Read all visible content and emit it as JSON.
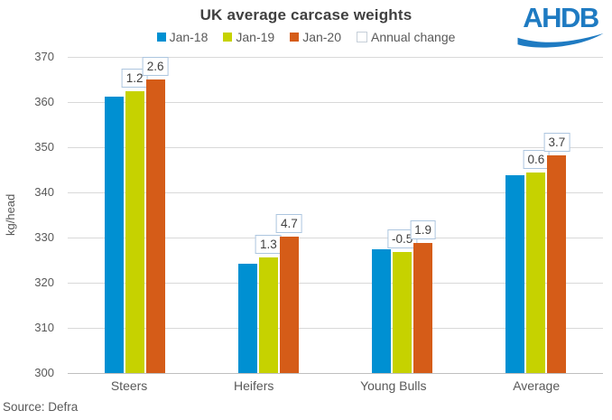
{
  "header": {
    "logo_text": "AHDB"
  },
  "footer": {
    "source": "Source: Defra"
  },
  "colors": {
    "jan18": "#0090D2",
    "jan19": "#C6D200",
    "jan20": "#D55C18",
    "annual_change_box_border": "#ADC6DF",
    "annual_change_swatch_border": "#C6CFD8",
    "logo_blue": "#1F7BC2"
  },
  "legend": [
    {
      "label": "Jan-18",
      "color": "#0090D2",
      "style": "filled"
    },
    {
      "label": "Jan-19",
      "color": "#C6D200",
      "style": "filled"
    },
    {
      "label": "Jan-20",
      "color": "#D55C18",
      "style": "filled"
    },
    {
      "label": "Annual change",
      "color": "#FFFFFF",
      "style": "outlined"
    }
  ],
  "chart_data": {
    "type": "bar",
    "title": "UK average carcase weights",
    "ylabel": "kg/head",
    "xlabel": "",
    "ylim": [
      300,
      370
    ],
    "ytick_step": 10,
    "yticks": [
      "370",
      "360",
      "350",
      "340",
      "330",
      "320",
      "310",
      "300"
    ],
    "grid": true,
    "legend_position": "top",
    "categories": [
      "Steers",
      "Heifers",
      "Young Bulls",
      "Average"
    ],
    "series": [
      {
        "name": "Jan-18",
        "color": "#0090D2",
        "values": [
          361.2,
          324.3,
          327.4,
          343.9
        ]
      },
      {
        "name": "Jan-19",
        "color": "#C6D200",
        "values": [
          362.4,
          325.6,
          326.9,
          344.5
        ],
        "annual_change_labels": [
          "1.2",
          "1.3",
          "-0.5",
          "0.6"
        ]
      },
      {
        "name": "Jan-20",
        "color": "#D55C18",
        "values": [
          365.0,
          330.3,
          328.8,
          348.2
        ],
        "annual_change_labels": [
          "2.6",
          "4.7",
          "1.9",
          "3.7"
        ]
      }
    ],
    "annotation_legend_name": "Annual change"
  }
}
